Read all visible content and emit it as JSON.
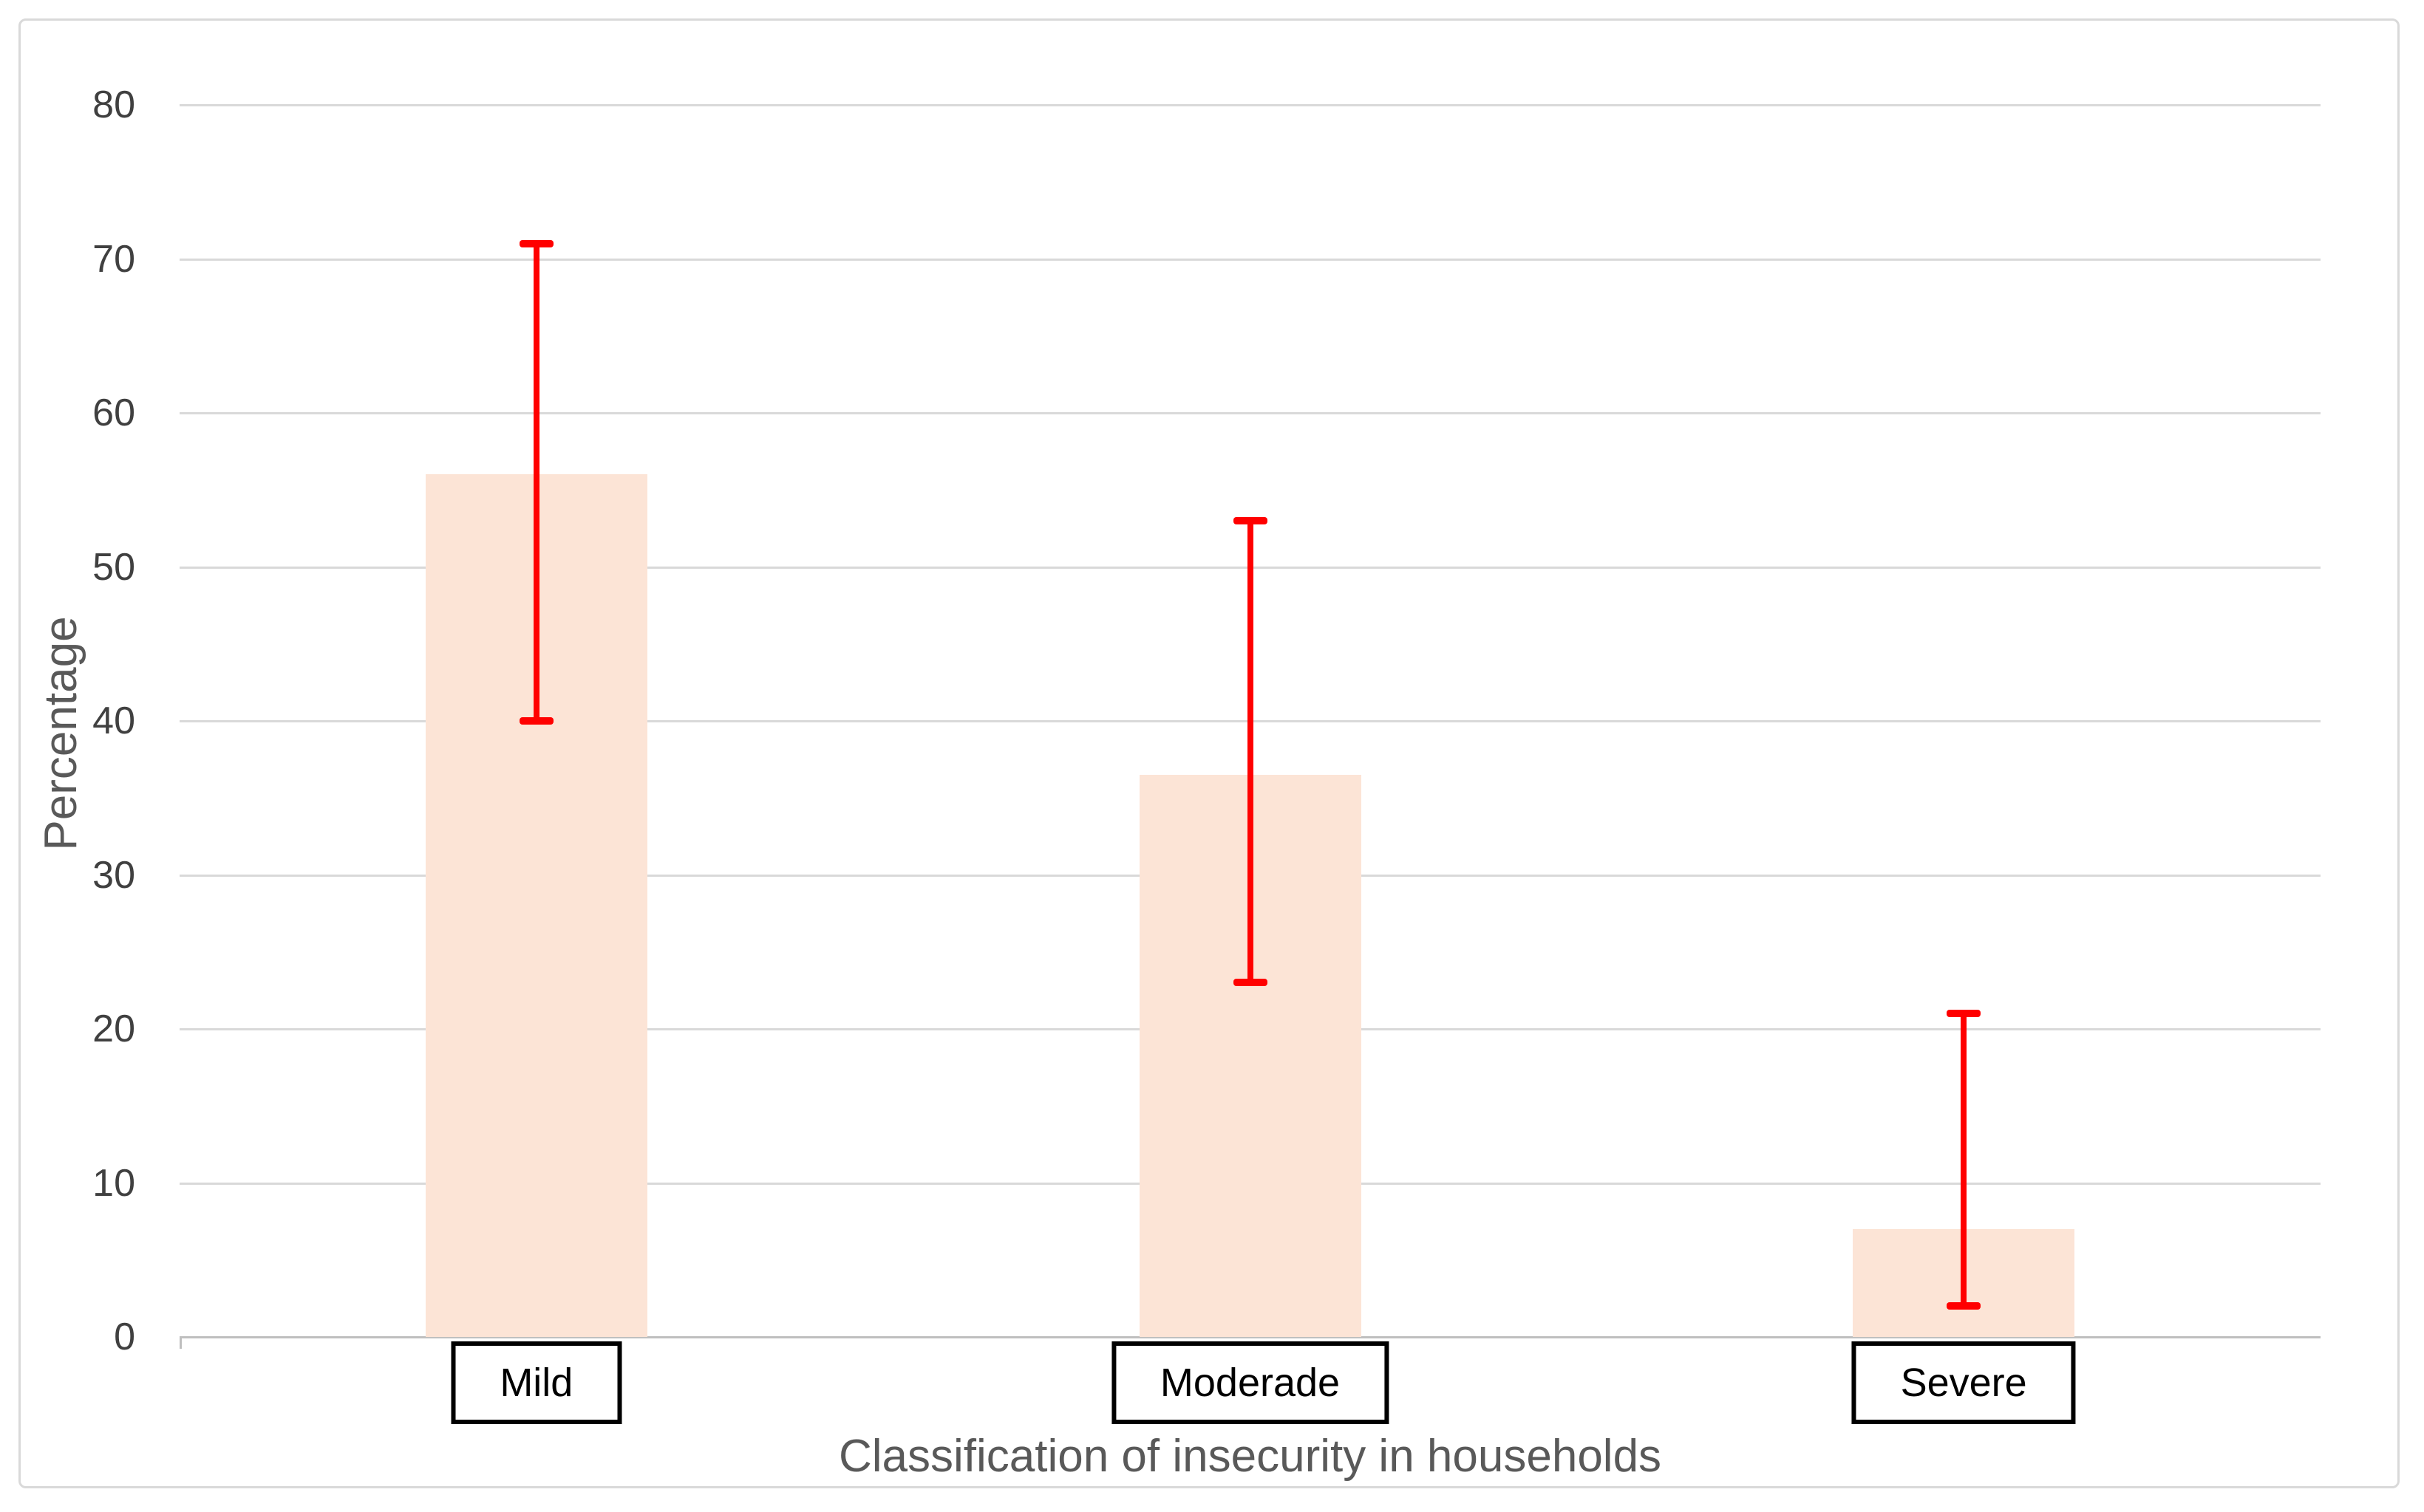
{
  "chart_data": {
    "type": "bar",
    "title": "",
    "xlabel": "Classification of insecurity in households",
    "ylabel": "Percentage",
    "categories": [
      "Mild",
      "Moderade",
      "Severe"
    ],
    "values": [
      56,
      36.5,
      7
    ],
    "error_bars": [
      {
        "low": 40,
        "high": 71
      },
      {
        "low": 23,
        "high": 53
      },
      {
        "low": 2,
        "high": 21
      }
    ],
    "ylim": [
      0,
      80
    ],
    "ytick_step": 10,
    "yticks": [
      0,
      10,
      20,
      30,
      40,
      50,
      60,
      70,
      80
    ],
    "grid": "horizontal-only",
    "legend": "none",
    "category_label_style": "boxed",
    "colors": {
      "bar_fill": "#FCE4D6",
      "error_bar": "#FF0000",
      "gridline": "#D9D9D9",
      "axis_line": "#BFBFBF",
      "tick_label": "#404040",
      "axis_title": "#595959",
      "category_label": "#000000",
      "category_box_border": "#000000",
      "chart_border": "#D9D9D9"
    }
  }
}
